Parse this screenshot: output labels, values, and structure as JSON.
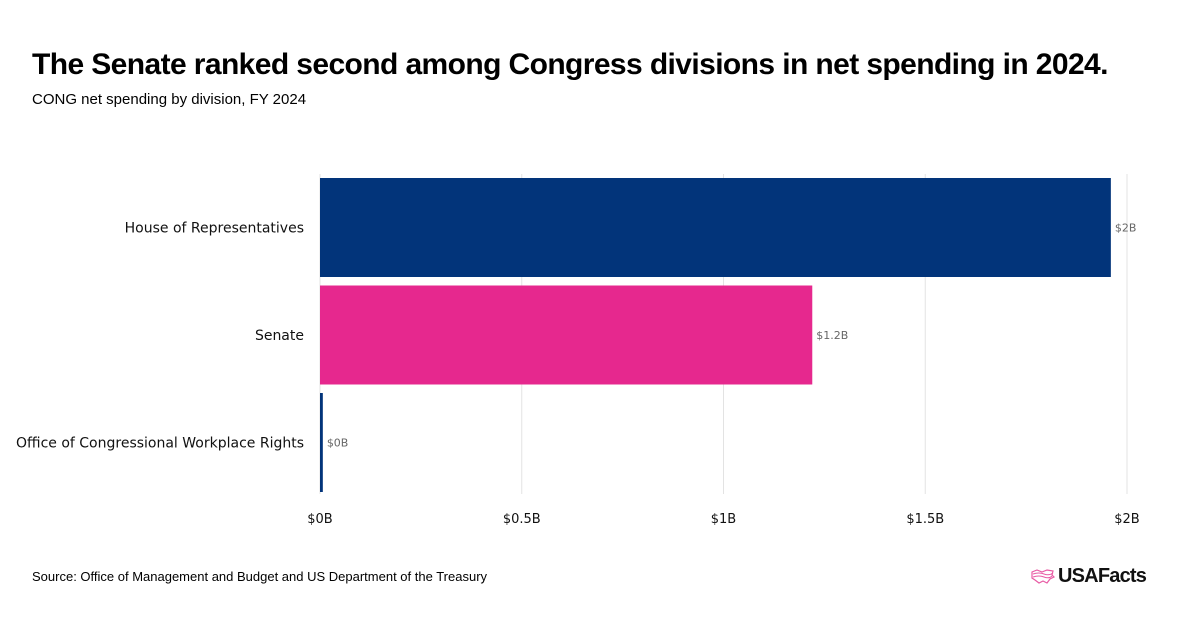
{
  "header": {
    "title": "The Senate ranked second among Congress divisions in net spending in 2024.",
    "subtitle": "CONG net spending by division, FY 2024"
  },
  "footer": {
    "source": "Source: Office of Management and Budget and US Department of the Treasury",
    "logo_text": "USAFacts",
    "logo_icon": "us-map-icon"
  },
  "chart_data": {
    "type": "bar",
    "orientation": "horizontal",
    "title": "The Senate ranked second among Congress divisions in net spending in 2024.",
    "subtitle": "CONG net spending by division, FY 2024",
    "xlabel": "",
    "ylabel": "",
    "categories": [
      "House of Representatives",
      "Senate",
      "Office of Congressional Workplace Rights"
    ],
    "values": [
      1.96,
      1.22,
      0.007
    ],
    "value_units": "billions USD",
    "data_labels": [
      "$2B",
      "$1.2B",
      "$0B"
    ],
    "colors": [
      "#02347A",
      "#E6288E",
      "#02347A"
    ],
    "xlim": [
      0,
      2
    ],
    "x_ticks": [
      0,
      0.5,
      1,
      1.5,
      2
    ],
    "x_tick_labels": [
      "$0B",
      "$0.5B",
      "$1B",
      "$1.5B",
      "$2B"
    ],
    "grid": true,
    "legend": "none"
  }
}
